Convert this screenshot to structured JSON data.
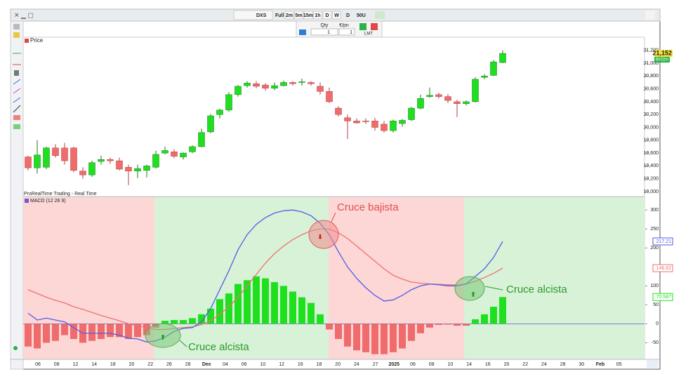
{
  "toolbar": {
    "symbol": "DXS",
    "range": "Full",
    "timeframes": [
      "2m",
      "5m",
      "15m",
      "1h",
      "D",
      "W"
    ],
    "period": "D",
    "units": "50U",
    "qty_label": "Qty",
    "price_label": "€/pn",
    "qty": 1,
    "price": 1,
    "order_type": "LMT"
  },
  "chart_data": [
    {
      "type": "candlestick",
      "title": "Price",
      "source": "ProRealTime Trading - Real Time",
      "open": [
        19540,
        19370,
        19380,
        19680,
        19680,
        19680,
        19320,
        19260,
        19470,
        19500,
        19480,
        19380,
        19320,
        19330,
        19380,
        19600,
        19620,
        19540,
        19620,
        19700,
        19930,
        20200,
        20270,
        20510,
        20650,
        20680,
        20660,
        20610,
        20650,
        20700,
        20700,
        20700,
        20640,
        20560,
        20300,
        20150,
        20100,
        20100,
        20100,
        20050,
        19950,
        20060,
        20120,
        20300,
        20480,
        20510,
        20480,
        20400,
        20370,
        20400,
        20780,
        20810,
        21010
      ],
      "high": [
        19560,
        19800,
        19700,
        19740,
        19760,
        19700,
        19380,
        19480,
        19560,
        19530,
        19530,
        19420,
        19420,
        19420,
        19640,
        19700,
        19660,
        19610,
        19720,
        19980,
        20210,
        20290,
        20550,
        20660,
        20720,
        20720,
        20690,
        20700,
        20730,
        20720,
        20760,
        20720,
        20700,
        20620,
        20330,
        20200,
        20140,
        20140,
        20150,
        20100,
        20120,
        20130,
        20320,
        20510,
        20620,
        20540,
        20520,
        20430,
        20420,
        20780,
        20830,
        21050,
        21200
      ],
      "low": [
        19330,
        19280,
        19350,
        19530,
        19420,
        19300,
        19200,
        19230,
        19420,
        19430,
        19330,
        19100,
        19210,
        19220,
        19360,
        19580,
        19520,
        19500,
        19600,
        19690,
        19910,
        20140,
        20240,
        20480,
        20620,
        20610,
        20570,
        20580,
        20640,
        20650,
        20650,
        20650,
        20510,
        20380,
        20170,
        19820,
        20060,
        20050,
        19950,
        19920,
        19920,
        20010,
        20100,
        20280,
        20460,
        20450,
        20380,
        20160,
        20340,
        20390,
        20750,
        20800,
        21000
      ],
      "close": [
        19370,
        19570,
        19680,
        19560,
        19480,
        19330,
        19260,
        19450,
        19500,
        19480,
        19350,
        19320,
        19360,
        19400,
        19580,
        19640,
        19550,
        19600,
        19700,
        19920,
        20180,
        20270,
        20510,
        20640,
        20690,
        20640,
        20610,
        20650,
        20700,
        20680,
        20710,
        20680,
        20560,
        20400,
        20200,
        20100,
        20070,
        20090,
        20000,
        19950,
        20100,
        20110,
        20300,
        20450,
        20500,
        20480,
        20420,
        20370,
        20400,
        20750,
        20800,
        21020,
        21152
      ],
      "colors": {
        "up": "#1fe01f",
        "down": "#f06b6b"
      },
      "ylim": [
        19000,
        21350
      ],
      "yticks": [
        {
          "value": 19000,
          "label": "19,000"
        },
        {
          "value": 19200,
          "label": "19,200"
        },
        {
          "value": 19400,
          "label": "19,400"
        },
        {
          "value": 19600,
          "label": "19,600"
        },
        {
          "value": 19800,
          "label": "19,800"
        },
        {
          "value": 20000,
          "label": "20,000"
        },
        {
          "value": 20200,
          "label": "20,200"
        },
        {
          "value": 20400,
          "label": "20,400"
        },
        {
          "value": 20600,
          "label": "20,600"
        },
        {
          "value": 20800,
          "label": "20,800"
        },
        {
          "value": 21000,
          "label": "21,000"
        },
        {
          "value": 21200,
          "label": "21,200"
        }
      ],
      "last_label": "21,152",
      "timer": "6h02m"
    },
    {
      "type": "macd",
      "title": "MACD (12 26 9)",
      "macd": {
        "color": "#4f5ee6",
        "values": [
          28,
          10,
          15,
          10,
          5,
          -10,
          -25,
          -25,
          -25,
          -25,
          -30,
          -38,
          -40,
          -48,
          -45,
          -35,
          -20,
          -12,
          -10,
          5,
          40,
          90,
          140,
          195,
          235,
          262,
          280,
          292,
          298,
          300,
          295,
          285,
          265,
          235,
          190,
          150,
          120,
          95,
          75,
          60,
          63,
          75,
          90,
          100,
          105,
          103,
          100,
          100,
          105,
          125,
          145,
          175,
          217.21
        ]
      },
      "signal": {
        "color": "#f07070",
        "values": [
          90,
          80,
          70,
          62,
          55,
          45,
          38,
          30,
          22,
          15,
          8,
          0,
          -5,
          -10,
          -15,
          -15,
          -12,
          -10,
          -8,
          -2,
          8,
          25,
          45,
          70,
          100,
          130,
          160,
          185,
          205,
          222,
          235,
          245,
          250,
          250,
          240,
          225,
          205,
          185,
          165,
          145,
          128,
          118,
          110,
          107,
          105,
          104,
          103,
          102,
          105,
          112,
          122,
          133,
          146.62
        ]
      },
      "histogram": {
        "colors": {
          "up": "#1fe01f",
          "down": "#f06b6b"
        },
        "values": [
          -60,
          -65,
          -50,
          -45,
          -30,
          -40,
          -50,
          -45,
          -40,
          -35,
          -35,
          -40,
          -35,
          -30,
          -10,
          8,
          10,
          10,
          15,
          25,
          40,
          65,
          80,
          105,
          115,
          125,
          120,
          110,
          100,
          85,
          70,
          55,
          25,
          -15,
          -40,
          -60,
          -70,
          -75,
          -80,
          -80,
          -75,
          -65,
          -45,
          -25,
          -10,
          -3,
          -2,
          -5,
          -5,
          12,
          25,
          45,
          70.587
        ]
      },
      "ylim": [
        -90,
        330
      ],
      "yticks": [
        -50,
        0,
        50,
        100,
        200,
        250,
        300
      ],
      "xticks": [
        "06",
        "08",
        "12",
        "14",
        "18",
        "20",
        "22",
        "26",
        "28",
        "Dec",
        "04",
        "06",
        "10",
        "12",
        "16",
        "18",
        "20",
        "24",
        "27",
        "2025",
        "06",
        "08",
        "10",
        "14",
        "16",
        "20",
        "22",
        "24",
        "28",
        "30",
        "Feb",
        "05"
      ],
      "annotations": [
        "Cruce alcista",
        "Cruce bajista",
        "Cruce alcista"
      ]
    }
  ]
}
